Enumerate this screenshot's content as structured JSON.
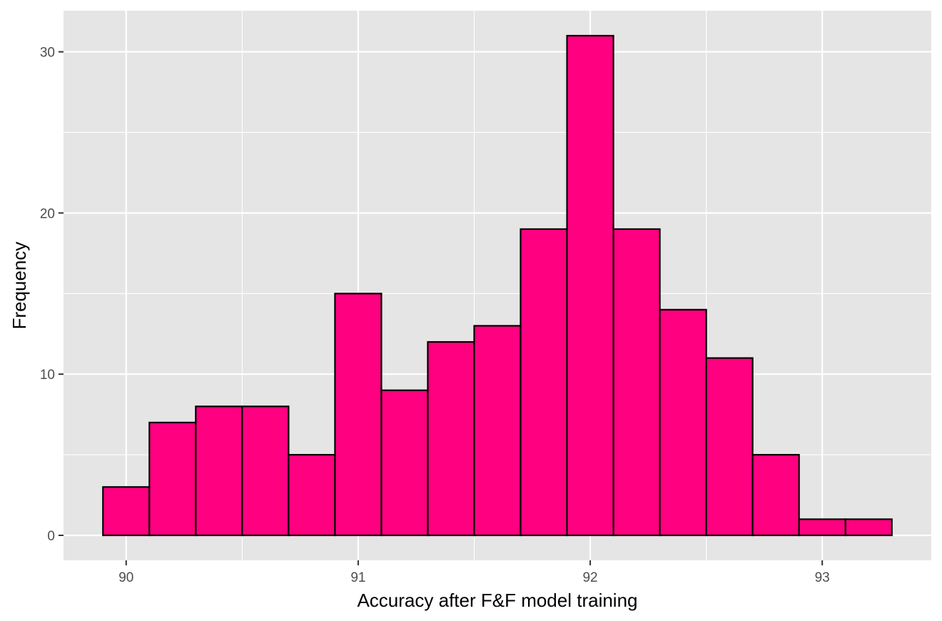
{
  "chart_data": {
    "type": "bar",
    "subtype": "histogram",
    "title": "",
    "xlabel": "Accuracy after F&F model training",
    "ylabel": "Frequency",
    "bins": [
      {
        "x0": 89.9,
        "x1": 90.1,
        "count": 3
      },
      {
        "x0": 90.1,
        "x1": 90.3,
        "count": 7
      },
      {
        "x0": 90.3,
        "x1": 90.5,
        "count": 8
      },
      {
        "x0": 90.5,
        "x1": 90.7,
        "count": 8
      },
      {
        "x0": 90.7,
        "x1": 90.9,
        "count": 5
      },
      {
        "x0": 90.9,
        "x1": 91.1,
        "count": 15
      },
      {
        "x0": 91.1,
        "x1": 91.3,
        "count": 9
      },
      {
        "x0": 91.3,
        "x1": 91.5,
        "count": 12
      },
      {
        "x0": 91.5,
        "x1": 91.7,
        "count": 13
      },
      {
        "x0": 91.7,
        "x1": 91.9,
        "count": 19
      },
      {
        "x0": 91.9,
        "x1": 92.1,
        "count": 31
      },
      {
        "x0": 92.1,
        "x1": 92.3,
        "count": 19
      },
      {
        "x0": 92.3,
        "x1": 92.5,
        "count": 14
      },
      {
        "x0": 92.5,
        "x1": 92.7,
        "count": 11
      },
      {
        "x0": 92.7,
        "x1": 92.9,
        "count": 5
      },
      {
        "x0": 92.9,
        "x1": 93.1,
        "count": 1
      },
      {
        "x0": 93.1,
        "x1": 93.3,
        "count": 1
      }
    ],
    "xlim": [
      89.73,
      93.47
    ],
    "ylim": [
      -1.55,
      32.55
    ],
    "xticks": [
      90,
      91,
      92,
      93
    ],
    "xtick_labels": [
      "90",
      "91",
      "92",
      "93"
    ],
    "yticks": [
      0,
      10,
      20,
      30
    ],
    "ytick_labels": [
      "0",
      "10",
      "20",
      "30"
    ],
    "x_minor": [
      90.5,
      91.5,
      92.5
    ],
    "y_minor": [
      5,
      15,
      25
    ],
    "grid": true,
    "legend": "none",
    "colors": {
      "bar_fill": "#ff0080",
      "bar_stroke": "#000000",
      "panel_bg": "#e5e5e5",
      "grid": "#ffffff"
    }
  }
}
